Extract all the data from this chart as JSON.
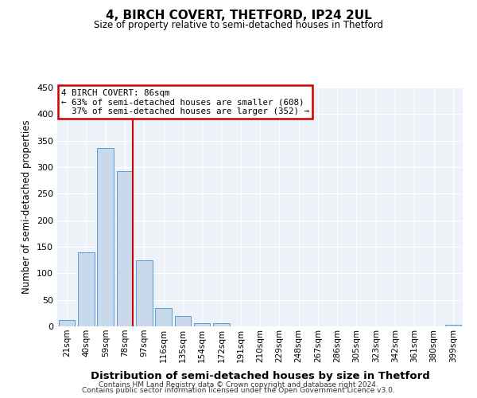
{
  "title": "4, BIRCH COVERT, THETFORD, IP24 2UL",
  "subtitle": "Size of property relative to semi-detached houses in Thetford",
  "xlabel": "Distribution of semi-detached houses by size in Thetford",
  "ylabel": "Number of semi-detached properties",
  "bin_labels": [
    "21sqm",
    "40sqm",
    "59sqm",
    "78sqm",
    "97sqm",
    "116sqm",
    "135sqm",
    "154sqm",
    "172sqm",
    "191sqm",
    "210sqm",
    "229sqm",
    "248sqm",
    "267sqm",
    "286sqm",
    "305sqm",
    "323sqm",
    "342sqm",
    "361sqm",
    "380sqm",
    "399sqm"
  ],
  "bar_heights": [
    12,
    139,
    336,
    293,
    125,
    35,
    19,
    6,
    6,
    0,
    0,
    0,
    0,
    0,
    0,
    0,
    0,
    0,
    0,
    0,
    3
  ],
  "bar_color": "#c9d9ec",
  "bar_edge_color": "#5b9bd5",
  "property_label": "4 BIRCH COVERT: 86sqm",
  "pct_smaller": 63,
  "pct_smaller_count": 608,
  "pct_larger": 37,
  "pct_larger_count": 352,
  "vline_color": "#cc0000",
  "ylim": [
    0,
    450
  ],
  "yticks": [
    0,
    50,
    100,
    150,
    200,
    250,
    300,
    350,
    400,
    450
  ],
  "background_color": "#edf2f9",
  "grid_color": "#ffffff",
  "footer1": "Contains HM Land Registry data © Crown copyright and database right 2024.",
  "footer2": "Contains public sector information licensed under the Open Government Licence v3.0."
}
